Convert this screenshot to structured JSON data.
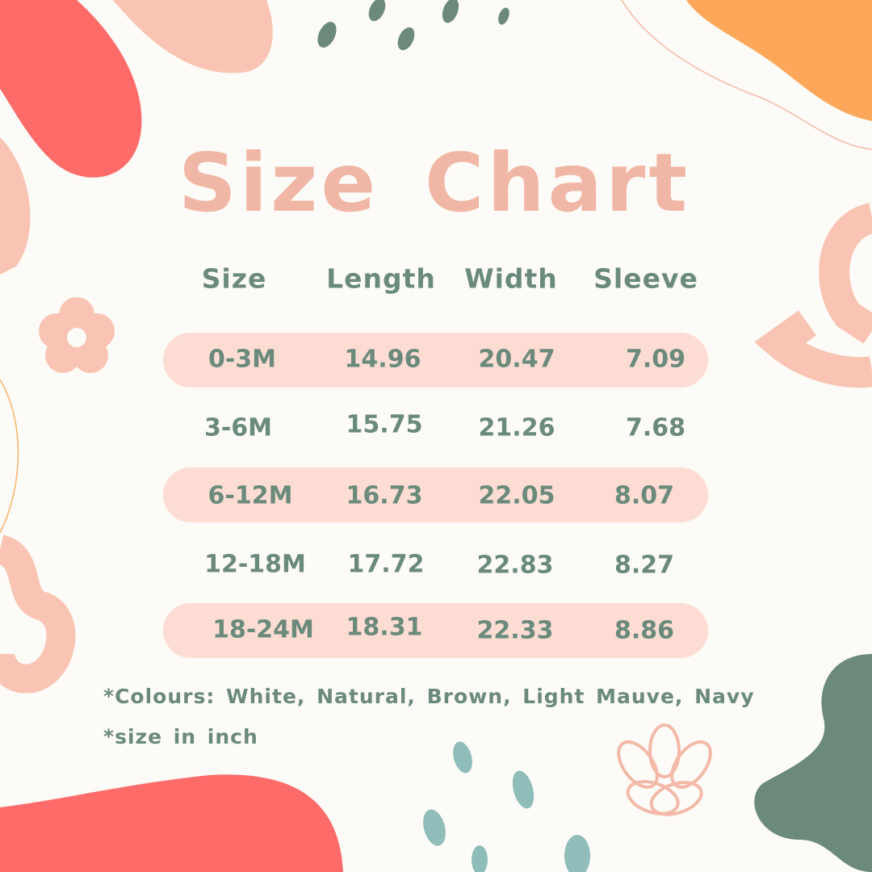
{
  "title": "Size Chart",
  "table": {
    "headers": [
      "Size",
      "Length",
      "Width",
      "Sleeve"
    ],
    "rows": [
      [
        "0-3M",
        "14.96",
        "20.47",
        "7.09"
      ],
      [
        "3-6M",
        "15.75",
        "21.26",
        "7.68"
      ],
      [
        "6-12M",
        "16.73",
        "22.05",
        "8.07"
      ],
      [
        "12-18M",
        "17.72",
        "22.83",
        "8.27"
      ],
      [
        "18-24M",
        "18.31",
        "22.33",
        "8.86"
      ]
    ]
  },
  "notes": {
    "colours": "*Colours: White, Natural, Brown, Light Mauve, Navy",
    "unit": "*size in inch"
  },
  "colors": {
    "background": "#fdfbf7",
    "title": "#f0b7a6",
    "text": "#6a8a7c",
    "row_highlight": "#fddcd3",
    "coral": "#ff6b68",
    "peach": "#f9c4b3",
    "orange": "#fda75a",
    "teal": "#8fbdb9",
    "sage": "#6b8a7b"
  }
}
